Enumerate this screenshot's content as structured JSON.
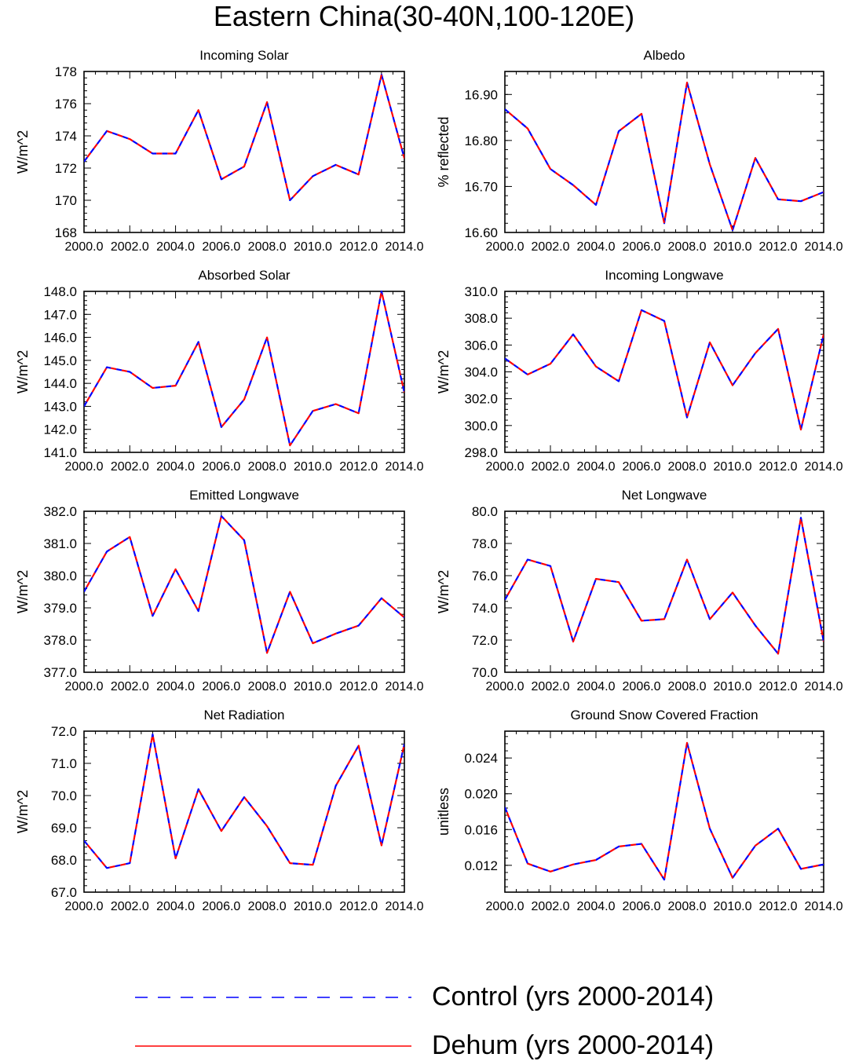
{
  "figure": {
    "title": "Eastern China(30-40N,100-120E)"
  },
  "legend": [
    {
      "label": "Control (yrs 2000-2014)",
      "color": "#0000ff",
      "style": "dashed"
    },
    {
      "label": "Dehum (yrs 2000-2014)",
      "color": "#ff0000",
      "style": "solid"
    }
  ],
  "chart_data": [
    {
      "type": "line",
      "title": "Incoming Solar",
      "ylabel": "W/m^2",
      "xlim": [
        2000,
        2014
      ],
      "ylim": [
        168,
        178
      ],
      "xticks": [
        2000,
        2002,
        2004,
        2006,
        2008,
        2010,
        2012,
        2014
      ],
      "xtick_labels": [
        "2000.0",
        "2002.0",
        "2004.0",
        "2006.0",
        "2008.0",
        "2010.0",
        "2012.0",
        "2014.0"
      ],
      "yticks": [
        168,
        170,
        172,
        174,
        176,
        178
      ],
      "ytick_labels": [
        "168",
        "170",
        "172",
        "174",
        "176",
        "178"
      ],
      "x": [
        2000,
        2001,
        2002,
        2003,
        2004,
        2005,
        2006,
        2007,
        2008,
        2009,
        2010,
        2011,
        2012,
        2013,
        2014
      ],
      "series": [
        {
          "name": "Control (yrs 2000-2014)",
          "values": [
            172.4,
            174.3,
            173.8,
            172.9,
            172.9,
            175.6,
            171.3,
            172.1,
            176.1,
            170.0,
            171.5,
            172.2,
            171.6,
            177.8,
            172.6
          ]
        },
        {
          "name": "Dehum (yrs 2000-2014)",
          "values": [
            172.4,
            174.3,
            173.8,
            172.9,
            172.9,
            175.6,
            171.3,
            172.1,
            176.1,
            170.0,
            171.5,
            172.2,
            171.6,
            177.8,
            172.6
          ]
        }
      ]
    },
    {
      "type": "line",
      "title": "Albedo",
      "ylabel": "% reflected",
      "xlim": [
        2000,
        2014
      ],
      "ylim": [
        16.6,
        16.95
      ],
      "xticks": [
        2000,
        2002,
        2004,
        2006,
        2008,
        2010,
        2012,
        2014
      ],
      "xtick_labels": [
        "2000.0",
        "2002.0",
        "2004.0",
        "2006.0",
        "2008.0",
        "2010.0",
        "2012.0",
        "2014.0"
      ],
      "yticks": [
        16.6,
        16.7,
        16.8,
        16.9
      ],
      "ytick_labels": [
        "16.60",
        "16.70",
        "16.80",
        "16.90"
      ],
      "x": [
        2000,
        2001,
        2002,
        2003,
        2004,
        2005,
        2006,
        2007,
        2008,
        2009,
        2010,
        2011,
        2012,
        2013,
        2014
      ],
      "series": [
        {
          "name": "Control (yrs 2000-2014)",
          "values": [
            16.868,
            16.826,
            16.738,
            16.703,
            16.66,
            16.82,
            16.858,
            16.62,
            16.926,
            16.748,
            16.605,
            16.762,
            16.672,
            16.668,
            16.688
          ]
        },
        {
          "name": "Dehum (yrs 2000-2014)",
          "values": [
            16.868,
            16.826,
            16.738,
            16.703,
            16.66,
            16.82,
            16.858,
            16.62,
            16.926,
            16.748,
            16.605,
            16.762,
            16.672,
            16.668,
            16.688
          ]
        }
      ]
    },
    {
      "type": "line",
      "title": "Absorbed Solar",
      "ylabel": "W/m^2",
      "xlim": [
        2000,
        2014
      ],
      "ylim": [
        141,
        148
      ],
      "xticks": [
        2000,
        2002,
        2004,
        2006,
        2008,
        2010,
        2012,
        2014
      ],
      "xtick_labels": [
        "2000.0",
        "2002.0",
        "2004.0",
        "2006.0",
        "2008.0",
        "2010.0",
        "2012.0",
        "2014.0"
      ],
      "yticks": [
        141,
        142,
        143,
        144,
        145,
        146,
        147,
        148
      ],
      "ytick_labels": [
        "141.0",
        "142.0",
        "143.0",
        "144.0",
        "145.0",
        "146.0",
        "147.0",
        "148.0"
      ],
      "x": [
        2000,
        2001,
        2002,
        2003,
        2004,
        2005,
        2006,
        2007,
        2008,
        2009,
        2010,
        2011,
        2012,
        2013,
        2014
      ],
      "series": [
        {
          "name": "Control (yrs 2000-2014)",
          "values": [
            143.0,
            144.7,
            144.5,
            143.8,
            143.9,
            145.8,
            142.1,
            143.3,
            146.0,
            141.3,
            142.8,
            143.1,
            142.7,
            148.0,
            143.6
          ]
        },
        {
          "name": "Dehum (yrs 2000-2014)",
          "values": [
            143.0,
            144.7,
            144.5,
            143.8,
            143.9,
            145.8,
            142.1,
            143.3,
            146.0,
            141.3,
            142.8,
            143.1,
            142.7,
            148.0,
            143.6
          ]
        }
      ]
    },
    {
      "type": "line",
      "title": "Incoming Longwave",
      "ylabel": "W/m^2",
      "xlim": [
        2000,
        2014
      ],
      "ylim": [
        298,
        310
      ],
      "xticks": [
        2000,
        2002,
        2004,
        2006,
        2008,
        2010,
        2012,
        2014
      ],
      "xtick_labels": [
        "2000.0",
        "2002.0",
        "2004.0",
        "2006.0",
        "2008.0",
        "2010.0",
        "2012.0",
        "2014.0"
      ],
      "yticks": [
        298,
        300,
        302,
        304,
        306,
        308,
        310
      ],
      "ytick_labels": [
        "298.0",
        "300.0",
        "302.0",
        "304.0",
        "306.0",
        "308.0",
        "310.0"
      ],
      "x": [
        2000,
        2001,
        2002,
        2003,
        2004,
        2005,
        2006,
        2007,
        2008,
        2009,
        2010,
        2011,
        2012,
        2013,
        2014
      ],
      "series": [
        {
          "name": "Control (yrs 2000-2014)",
          "values": [
            305.0,
            303.8,
            304.6,
            306.8,
            304.4,
            303.3,
            308.6,
            307.8,
            300.6,
            306.2,
            303.0,
            305.4,
            307.2,
            299.7,
            306.8
          ]
        },
        {
          "name": "Dehum (yrs 2000-2014)",
          "values": [
            305.0,
            303.8,
            304.6,
            306.8,
            304.4,
            303.3,
            308.6,
            307.8,
            300.6,
            306.2,
            303.0,
            305.4,
            307.2,
            299.7,
            306.8
          ]
        }
      ]
    },
    {
      "type": "line",
      "title": "Emitted Longwave",
      "ylabel": "W/m^2",
      "xlim": [
        2000,
        2014
      ],
      "ylim": [
        377,
        382
      ],
      "xticks": [
        2000,
        2002,
        2004,
        2006,
        2008,
        2010,
        2012,
        2014
      ],
      "xtick_labels": [
        "2000.0",
        "2002.0",
        "2004.0",
        "2006.0",
        "2008.0",
        "2010.0",
        "2012.0",
        "2014.0"
      ],
      "yticks": [
        377,
        378,
        379,
        380,
        381,
        382
      ],
      "ytick_labels": [
        "377.0",
        "378.0",
        "379.0",
        "380.0",
        "381.0",
        "382.0"
      ],
      "x": [
        2000,
        2001,
        2002,
        2003,
        2004,
        2005,
        2006,
        2007,
        2008,
        2009,
        2010,
        2011,
        2012,
        2013,
        2014
      ],
      "series": [
        {
          "name": "Control (yrs 2000-2014)",
          "values": [
            379.5,
            380.75,
            381.2,
            378.75,
            380.2,
            378.9,
            381.85,
            381.1,
            377.6,
            379.5,
            377.9,
            378.2,
            378.45,
            379.3,
            378.7
          ]
        },
        {
          "name": "Dehum (yrs 2000-2014)",
          "values": [
            379.5,
            380.75,
            381.2,
            378.75,
            380.2,
            378.9,
            381.85,
            381.1,
            377.6,
            379.5,
            377.9,
            378.2,
            378.45,
            379.3,
            378.7
          ]
        }
      ]
    },
    {
      "type": "line",
      "title": "Net Longwave",
      "ylabel": "W/m^2",
      "xlim": [
        2000,
        2014
      ],
      "ylim": [
        70,
        80
      ],
      "xticks": [
        2000,
        2002,
        2004,
        2006,
        2008,
        2010,
        2012,
        2014
      ],
      "xtick_labels": [
        "2000.0",
        "2002.0",
        "2004.0",
        "2006.0",
        "2008.0",
        "2010.0",
        "2012.0",
        "2014.0"
      ],
      "yticks": [
        70,
        72,
        74,
        76,
        78,
        80
      ],
      "ytick_labels": [
        "70.0",
        "72.0",
        "74.0",
        "76.0",
        "78.0",
        "80.0"
      ],
      "x": [
        2000,
        2001,
        2002,
        2003,
        2004,
        2005,
        2006,
        2007,
        2008,
        2009,
        2010,
        2011,
        2012,
        2013,
        2014
      ],
      "series": [
        {
          "name": "Control (yrs 2000-2014)",
          "values": [
            74.5,
            77.0,
            76.6,
            71.9,
            75.8,
            75.6,
            73.2,
            73.3,
            77.0,
            73.3,
            74.95,
            72.9,
            71.15,
            79.6,
            71.9
          ]
        },
        {
          "name": "Dehum (yrs 2000-2014)",
          "values": [
            74.5,
            77.0,
            76.6,
            71.9,
            75.8,
            75.6,
            73.2,
            73.3,
            77.0,
            73.3,
            74.95,
            72.9,
            71.15,
            79.6,
            71.9
          ]
        }
      ]
    },
    {
      "type": "line",
      "title": "Net Radiation",
      "ylabel": "W/m^2",
      "xlim": [
        2000,
        2014
      ],
      "ylim": [
        67,
        72
      ],
      "xticks": [
        2000,
        2002,
        2004,
        2006,
        2008,
        2010,
        2012,
        2014
      ],
      "xtick_labels": [
        "2000.0",
        "2002.0",
        "2004.0",
        "2006.0",
        "2008.0",
        "2010.0",
        "2012.0",
        "2014.0"
      ],
      "yticks": [
        67,
        68,
        69,
        70,
        71,
        72
      ],
      "ytick_labels": [
        "67.0",
        "68.0",
        "69.0",
        "70.0",
        "71.0",
        "72.0"
      ],
      "x": [
        2000,
        2001,
        2002,
        2003,
        2004,
        2005,
        2006,
        2007,
        2008,
        2009,
        2010,
        2011,
        2012,
        2013,
        2014
      ],
      "series": [
        {
          "name": "Control (yrs 2000-2014)",
          "values": [
            68.6,
            67.75,
            67.9,
            71.9,
            68.05,
            70.2,
            68.9,
            69.95,
            69.05,
            67.9,
            67.85,
            70.3,
            71.55,
            68.45,
            71.6
          ]
        },
        {
          "name": "Dehum (yrs 2000-2014)",
          "values": [
            68.6,
            67.75,
            67.9,
            71.9,
            68.05,
            70.2,
            68.9,
            69.95,
            69.05,
            67.9,
            67.85,
            70.3,
            71.55,
            68.45,
            71.6
          ]
        }
      ]
    },
    {
      "type": "line",
      "title": "Ground Snow Covered Fraction",
      "ylabel": "unitless",
      "xlim": [
        2000,
        2014
      ],
      "ylim": [
        0.009,
        0.027
      ],
      "xticks": [
        2000,
        2002,
        2004,
        2006,
        2008,
        2010,
        2012,
        2014
      ],
      "xtick_labels": [
        "2000.0",
        "2002.0",
        "2004.0",
        "2006.0",
        "2008.0",
        "2010.0",
        "2012.0",
        "2014.0"
      ],
      "yticks": [
        0.012,
        0.016,
        0.02,
        0.024
      ],
      "ytick_labels": [
        "0.012",
        "0.016",
        "0.020",
        "0.024"
      ],
      "x": [
        2000,
        2001,
        2002,
        2003,
        2004,
        2005,
        2006,
        2007,
        2008,
        2009,
        2010,
        2011,
        2012,
        2013,
        2014
      ],
      "series": [
        {
          "name": "Control (yrs 2000-2014)",
          "values": [
            0.0185,
            0.0122,
            0.0113,
            0.0121,
            0.0126,
            0.0141,
            0.0144,
            0.0104,
            0.0257,
            0.0161,
            0.0106,
            0.0142,
            0.0161,
            0.0116,
            0.0121
          ]
        },
        {
          "name": "Dehum (yrs 2000-2014)",
          "values": [
            0.0185,
            0.0122,
            0.0113,
            0.0121,
            0.0126,
            0.0141,
            0.0144,
            0.0104,
            0.0257,
            0.0161,
            0.0106,
            0.0142,
            0.0161,
            0.0116,
            0.0121
          ]
        }
      ]
    }
  ]
}
